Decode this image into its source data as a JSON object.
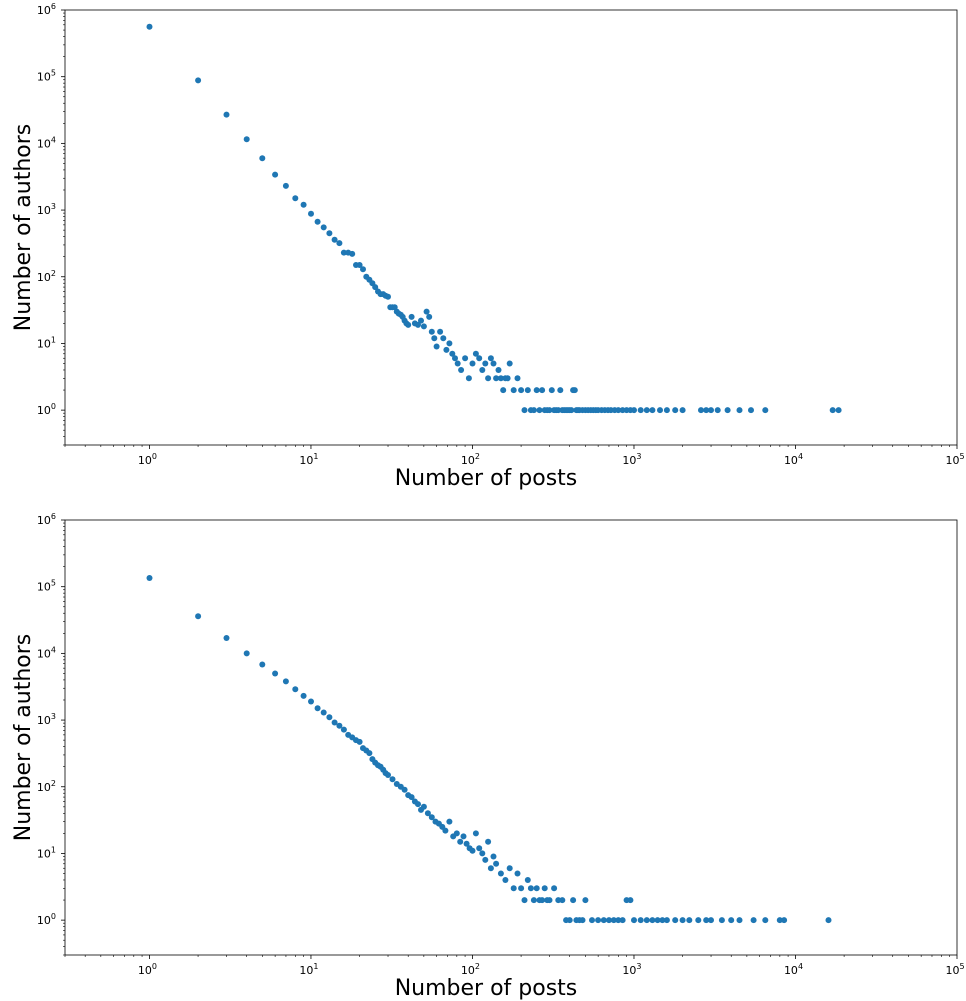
{
  "chart_data": [
    {
      "type": "scatter",
      "xlabel": "Number of posts",
      "ylabel": "Number of authors",
      "xscale": "log",
      "yscale": "log",
      "xlim": [
        0.3,
        100000
      ],
      "ylim": [
        0.3,
        1000000
      ],
      "xticks": [
        1,
        10,
        100,
        1000,
        10000,
        100000
      ],
      "yticks": [
        1,
        10,
        100,
        1000,
        10000,
        100000,
        1000000
      ],
      "tick_label_base": "10",
      "xtick_exponents": [
        "0",
        "1",
        "2",
        "3",
        "4",
        "5"
      ],
      "ytick_exponents": [
        "0",
        "1",
        "2",
        "3",
        "4",
        "5",
        "6"
      ],
      "grid": false,
      "marker_color": "#1f77b4",
      "series": [
        {
          "x": [
            1,
            2,
            3,
            4,
            5,
            6,
            7,
            8,
            9,
            10,
            11,
            12,
            13,
            14,
            15,
            16,
            17,
            18,
            19,
            20,
            21,
            22,
            23,
            24,
            25,
            26,
            27,
            28,
            29,
            30,
            31,
            32,
            33,
            34,
            35,
            36,
            37,
            38,
            39,
            40,
            42,
            44,
            46,
            48,
            50,
            52,
            54,
            56,
            58,
            60,
            63,
            66,
            69,
            72,
            75,
            78,
            81,
            85,
            90,
            95,
            100,
            105,
            110,
            115,
            120,
            125,
            130,
            135,
            140,
            145,
            150,
            155,
            160,
            165,
            170,
            180,
            190,
            200,
            210,
            220,
            230,
            240,
            250,
            260,
            270,
            280,
            290,
            300,
            310,
            320,
            330,
            340,
            350,
            360,
            370,
            380,
            390,
            400,
            410,
            420,
            430,
            440,
            450,
            460,
            480,
            500,
            520,
            540,
            560,
            580,
            600,
            630,
            660,
            690,
            720,
            760,
            800,
            850,
            900,
            950,
            1000,
            1100,
            1200,
            1300,
            1450,
            1600,
            1800,
            2000,
            2600,
            2800,
            3000,
            3300,
            3800,
            4500,
            5300,
            6500,
            17000,
            18500
          ],
          "y": [
            560000,
            88000,
            27000,
            11500,
            6000,
            3400,
            2300,
            1500,
            1200,
            880,
            670,
            550,
            450,
            360,
            320,
            230,
            230,
            220,
            150,
            150,
            130,
            100,
            90,
            80,
            70,
            60,
            55,
            55,
            52,
            50,
            35,
            35,
            35,
            30,
            28,
            27,
            25,
            22,
            20,
            19,
            25,
            20,
            19,
            22,
            18,
            30,
            25,
            15,
            12,
            9,
            15,
            12,
            8,
            10,
            7,
            6,
            5,
            4,
            6,
            3,
            5,
            7,
            6,
            4,
            5,
            3,
            6,
            5,
            3,
            4,
            3,
            2,
            3,
            3,
            5,
            2,
            3,
            2,
            1,
            2,
            1,
            1,
            2,
            1,
            2,
            1,
            1,
            1,
            2,
            1,
            1,
            1,
            2,
            1,
            1,
            1,
            1,
            1,
            1,
            2,
            2,
            1,
            1,
            1,
            1,
            1,
            1,
            1,
            1,
            1,
            1,
            1,
            1,
            1,
            1,
            1,
            1,
            1,
            1,
            1,
            1,
            1,
            1,
            1,
            1,
            1,
            1,
            1,
            1,
            1,
            1,
            1,
            1,
            1,
            1,
            1,
            1,
            1
          ]
        }
      ]
    },
    {
      "type": "scatter",
      "xlabel": "Number of posts",
      "ylabel": "Number of authors",
      "xscale": "log",
      "yscale": "log",
      "xlim": [
        0.3,
        100000
      ],
      "ylim": [
        0.3,
        1000000
      ],
      "xticks": [
        1,
        10,
        100,
        1000,
        10000,
        100000
      ],
      "yticks": [
        1,
        10,
        100,
        1000,
        10000,
        100000,
        1000000
      ],
      "tick_label_base": "10",
      "xtick_exponents": [
        "0",
        "1",
        "2",
        "3",
        "4",
        "5"
      ],
      "ytick_exponents": [
        "0",
        "1",
        "2",
        "3",
        "4",
        "5",
        "6"
      ],
      "grid": false,
      "marker_color": "#1f77b4",
      "series": [
        {
          "x": [
            1,
            2,
            3,
            4,
            5,
            6,
            7,
            8,
            9,
            10,
            11,
            12,
            13,
            14,
            15,
            16,
            17,
            18,
            19,
            20,
            21,
            22,
            23,
            24,
            25,
            26,
            27,
            28,
            29,
            30,
            32,
            34,
            36,
            38,
            40,
            42,
            44,
            46,
            48,
            50,
            53,
            56,
            59,
            62,
            65,
            68,
            72,
            76,
            80,
            84,
            88,
            92,
            96,
            100,
            105,
            110,
            115,
            120,
            125,
            130,
            135,
            140,
            150,
            160,
            170,
            180,
            190,
            200,
            210,
            220,
            230,
            240,
            250,
            260,
            270,
            280,
            290,
            300,
            320,
            340,
            360,
            380,
            400,
            420,
            440,
            460,
            480,
            500,
            550,
            600,
            650,
            700,
            750,
            800,
            850,
            900,
            950,
            1000,
            1100,
            1200,
            1300,
            1400,
            1500,
            1600,
            1800,
            2000,
            2200,
            2500,
            2800,
            3000,
            3500,
            4000,
            4500,
            5500,
            6500,
            8000,
            8500,
            16000
          ],
          "y": [
            135000,
            36000,
            17000,
            10000,
            6800,
            5000,
            3800,
            2900,
            2300,
            1900,
            1500,
            1300,
            1100,
            920,
            820,
            720,
            600,
            550,
            500,
            470,
            380,
            350,
            320,
            260,
            230,
            210,
            200,
            180,
            160,
            150,
            130,
            110,
            100,
            90,
            75,
            70,
            60,
            55,
            45,
            50,
            40,
            35,
            30,
            28,
            25,
            22,
            30,
            18,
            20,
            15,
            18,
            14,
            12,
            11,
            20,
            12,
            10,
            8,
            15,
            6,
            9,
            7,
            5,
            4,
            6,
            3,
            5,
            3,
            2,
            4,
            3,
            2,
            3,
            2,
            2,
            3,
            2,
            2,
            3,
            2,
            2,
            1,
            1,
            2,
            1,
            1,
            1,
            2,
            1,
            1,
            1,
            1,
            1,
            1,
            1,
            2,
            2,
            1,
            1,
            1,
            1,
            1,
            1,
            1,
            1,
            1,
            1,
            1,
            1,
            1,
            1,
            1,
            1,
            1,
            1,
            1,
            1,
            1
          ]
        }
      ]
    }
  ]
}
